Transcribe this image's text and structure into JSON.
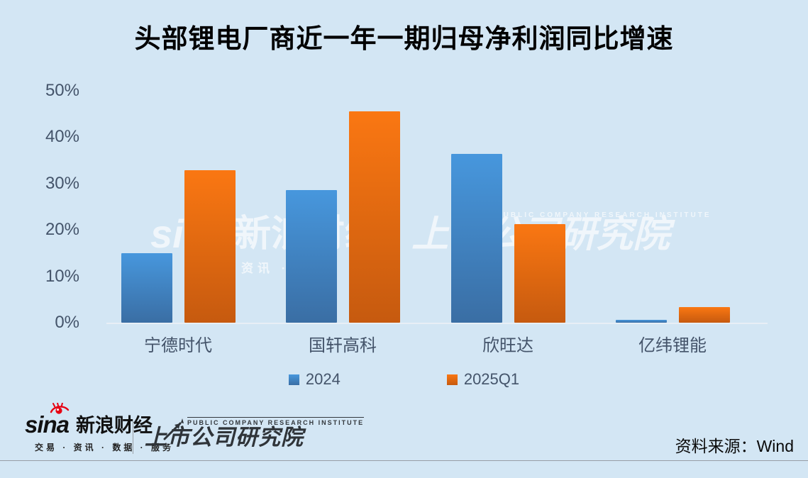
{
  "title": "头部锂电厂商近一年一期归母净利润同比增速",
  "chart_data": {
    "type": "bar",
    "title": "头部锂电厂商近一年一期归母净利润同比增速",
    "categories": [
      "宁德时代",
      "国轩高科",
      "欣旺达",
      "亿纬锂能"
    ],
    "series": [
      {
        "name": "2024",
        "values": [
          15.0,
          28.6,
          36.4,
          0.6
        ],
        "color_top": "#4797dd",
        "color_bottom": "#3a6ea4"
      },
      {
        "name": "2025Q1",
        "values": [
          32.9,
          45.6,
          21.2,
          3.3
        ],
        "color_top": "#fa7712",
        "color_bottom": "#c65a0f"
      }
    ],
    "ylabel": "",
    "xlabel": "",
    "ylim": [
      0,
      50
    ],
    "yticks": [
      50,
      40,
      30,
      20,
      10,
      0
    ],
    "ytick_suffix": "%",
    "grid": false,
    "legend_position": "bottom"
  },
  "watermark": {
    "brand_en": "sina",
    "brand_cn": "新浪财经",
    "tagline": "资讯 · 服务",
    "institute": "上市公司研究院",
    "institute_en": "PUBLIC COMPANY RESEARCH INSTITUTE"
  },
  "footer": {
    "sina_word": "sina",
    "sina_brand": "新浪财经",
    "sina_tagline": "交易 · 资讯 · 数据 · 服务",
    "institute": "上市公司研究院",
    "institute_en": "PUBLIC COMPANY RESEARCH INSTITUTE",
    "source": "资料来源：Wind"
  },
  "colors": {
    "background": "#d3e6f4",
    "axis_text": "#44546a",
    "title_text": "#000000",
    "baseline": "#e8eff6",
    "footer_rule": "#979da5",
    "sina_red": "#e60012"
  }
}
